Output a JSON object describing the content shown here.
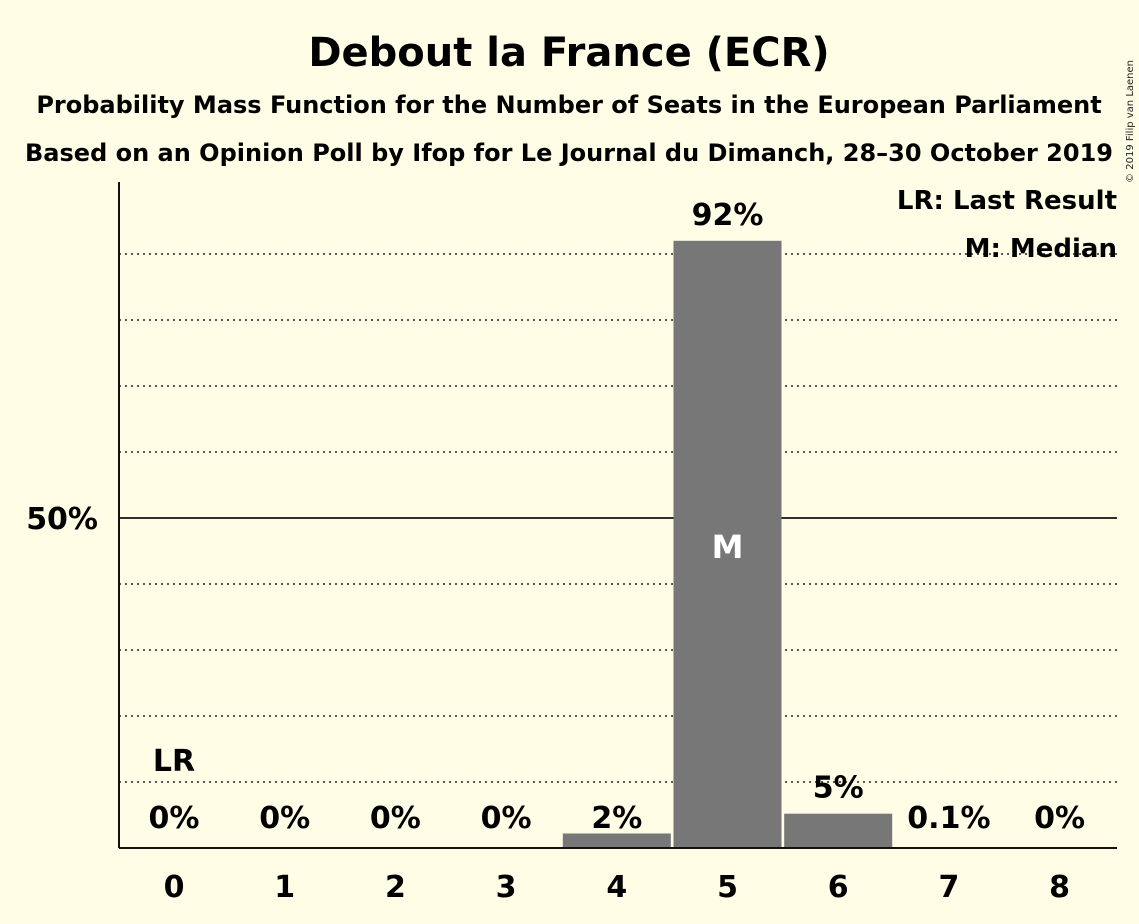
{
  "chart_data": {
    "type": "bar",
    "title": "Debout la France (ECR)",
    "subtitle": "Probability Mass Function for the Number of Seats in the European Parliament",
    "subtitle2": "Based on an Opinion Poll by Ifop for Le Journal du Dimanch, 28–30 October 2019",
    "copyright": "© 2019 Filip van Laenen",
    "categories": [
      "0",
      "1",
      "2",
      "3",
      "4",
      "5",
      "6",
      "7",
      "8"
    ],
    "values": [
      0,
      0,
      0,
      0,
      2.2,
      92,
      5.2,
      0.1,
      0
    ],
    "value_labels": [
      "0%",
      "0%",
      "0%",
      "0%",
      "2%",
      "92%",
      "5%",
      "0.1%",
      "0%"
    ],
    "ylim": [
      0,
      100
    ],
    "y_ticks": [
      {
        "value": 50,
        "label": "50%"
      }
    ],
    "gridlines": [
      10,
      20,
      30,
      40,
      60,
      70,
      80,
      90
    ],
    "last_result_index": 0,
    "last_result_label": "LR",
    "median_index": 5,
    "median_label": "M",
    "legend": {
      "placement": "top-right",
      "items": [
        "LR: Last Result",
        "M: Median"
      ]
    },
    "bar_color": "#777777",
    "grid": true
  }
}
